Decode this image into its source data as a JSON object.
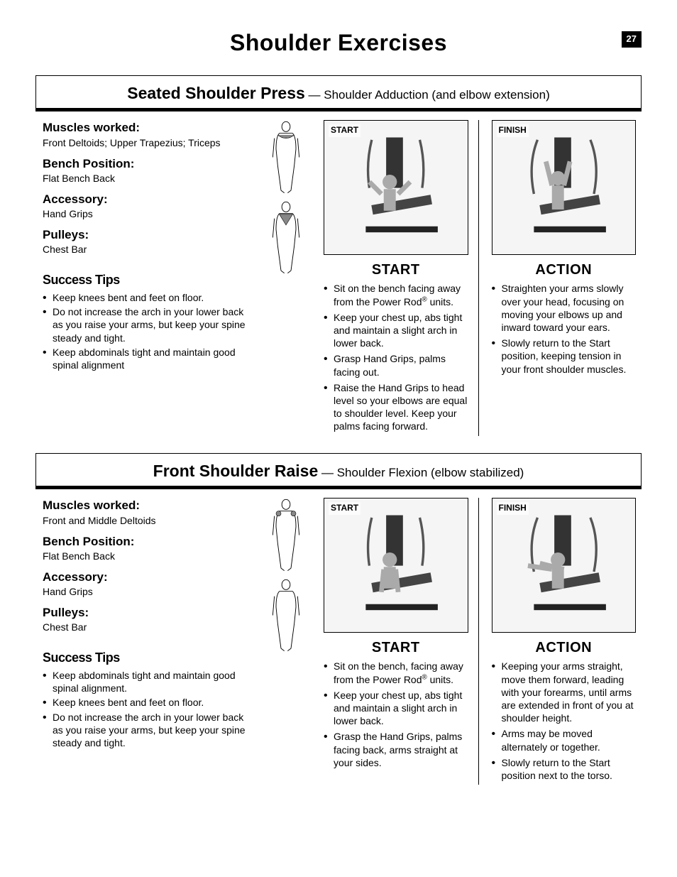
{
  "page_number": "27",
  "page_title": "Shoulder Exercises",
  "colors": {
    "text": "#000000",
    "background": "#ffffff",
    "page_num_bg": "#000000",
    "page_num_fg": "#ffffff"
  },
  "exercises": [
    {
      "name": "Seated Shoulder Press",
      "subtitle": "— Shoulder Adduction (and elbow extension)",
      "specs": {
        "muscles_label": "Muscles worked:",
        "muscles": "Front Deltoids; Upper Trapezius; Triceps",
        "bench_label": "Bench Position:",
        "bench": "Flat Bench Back",
        "accessory_label": "Accessory:",
        "accessory": "Hand Grips",
        "pulleys_label": "Pulleys:",
        "pulleys": "Chest Bar"
      },
      "tips_heading": "Success Tips",
      "tips": [
        "Keep knees bent and feet on floor.",
        "Do not increase the arch in your lower back as you raise your arms, but keep your spine steady and tight.",
        "Keep abdominals tight and maintain good spinal alignment"
      ],
      "start_img_tag": "START",
      "finish_img_tag": "FINISH",
      "start_heading": "START",
      "start_steps": [
        "Sit on the bench facing away from the Power Rod® units.",
        "Keep your chest up, abs tight and maintain a slight arch in lower back.",
        "Grasp Hand Grips, palms facing out.",
        "Raise the Hand Grips to head level so your elbows are equal to shoulder level. Keep your palms facing forward."
      ],
      "action_heading": "ACTION",
      "action_steps": [
        "Straighten your arms slowly over your head, focusing on moving your elbows up and inward toward your ears.",
        "Slowly return to the Start position, keeping tension in your front shoulder muscles."
      ]
    },
    {
      "name": "Front Shoulder Raise",
      "subtitle": "— Shoulder Flexion (elbow stabilized)",
      "specs": {
        "muscles_label": "Muscles worked:",
        "muscles": "Front and Middle Deltoids",
        "bench_label": "Bench Position:",
        "bench": "Flat Bench Back",
        "accessory_label": "Accessory:",
        "accessory": "Hand Grips",
        "pulleys_label": "Pulleys:",
        "pulleys": "Chest Bar"
      },
      "tips_heading": "Success Tips",
      "tips": [
        "Keep abdominals tight and maintain good spinal alignment.",
        "Keep knees bent and feet on floor.",
        "Do not increase the arch in your lower back as you raise your arms, but keep your spine steady and tight."
      ],
      "start_img_tag": "START",
      "finish_img_tag": "FINISH",
      "start_heading": "START",
      "start_steps": [
        "Sit on the bench, facing away from the Power Rod® units.",
        "Keep your chest up, abs tight and maintain a slight arch in lower back.",
        "Grasp the Hand Grips, palms facing back, arms straight at your sides."
      ],
      "action_heading": "ACTION",
      "action_steps": [
        "Keeping your arms straight, move them forward, leading with your forearms, until arms are extended in front of you at shoulder height.",
        "Arms may be moved alternately or together.",
        "Slowly return to the Start position next to the torso."
      ]
    }
  ]
}
